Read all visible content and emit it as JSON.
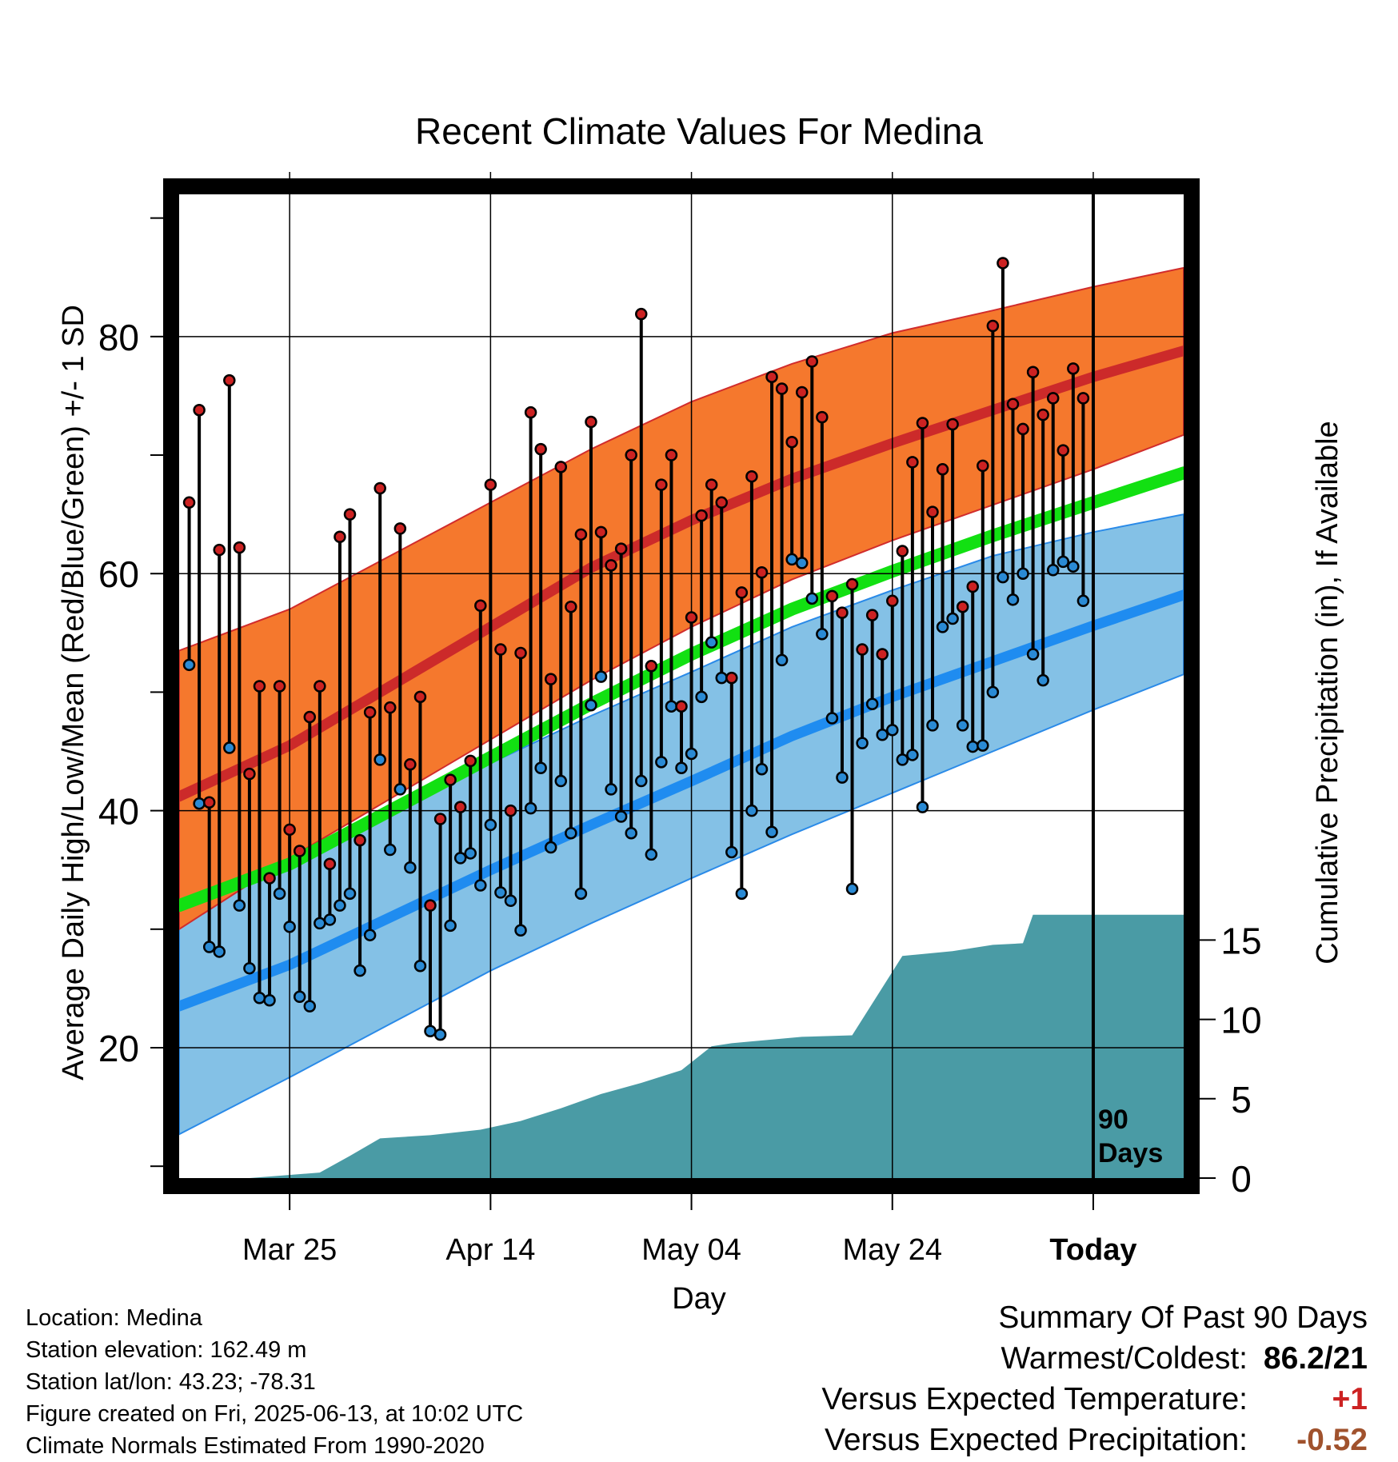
{
  "chart_data": {
    "type": "line",
    "title": "Recent Climate Values For Medina",
    "xlabel": "Day",
    "ylabel_left": "Average Daily High/Low/Mean (Red/Blue/Green) +/- 1 SD",
    "ylabel_right": "Cumulative Precipitation (in), If Available",
    "y_ticks": [
      20,
      40,
      60,
      80
    ],
    "y_range": [
      9,
      92
    ],
    "precip_ticks": [
      0,
      5,
      10,
      15
    ],
    "precip_range": [
      0,
      62
    ],
    "x_tick_labels": [
      {
        "day": 10,
        "label": "Mar 25"
      },
      {
        "day": 30,
        "label": "Apr 14"
      },
      {
        "day": 50,
        "label": "May 04"
      },
      {
        "day": 70,
        "label": "May 24"
      },
      {
        "day": 90,
        "label": "Today"
      }
    ],
    "x_range": [
      -1,
      99
    ],
    "today_day": 90,
    "today_label": "90 Days",
    "normals": {
      "days": [
        -1,
        10,
        20,
        30,
        40,
        50,
        60,
        70,
        80,
        90,
        99
      ],
      "high_mean": [
        41.2,
        45.5,
        50.5,
        55.5,
        60.5,
        64.5,
        68.0,
        71.0,
        73.8,
        76.6,
        78.8
      ],
      "high_upper": [
        53.5,
        57.0,
        61.5,
        66.0,
        70.5,
        74.5,
        77.7,
        80.3,
        82.2,
        84.2,
        85.8
      ],
      "high_lower": [
        30.0,
        36.0,
        41.0,
        46.0,
        51.0,
        55.5,
        59.5,
        62.8,
        65.8,
        68.8,
        71.7
      ],
      "mean": [
        32.0,
        35.5,
        40.0,
        44.5,
        49.0,
        53.2,
        57.0,
        60.2,
        63.2,
        66.0,
        68.5
      ],
      "low_mean": [
        23.5,
        27.0,
        31.0,
        35.0,
        38.8,
        42.5,
        46.3,
        49.6,
        52.6,
        55.6,
        58.2
      ],
      "low_upper": [
        34.0,
        36.0,
        40.0,
        44.0,
        48.0,
        51.7,
        55.5,
        58.6,
        61.5,
        63.5,
        65.0
      ],
      "low_lower": [
        12.7,
        17.5,
        22.0,
        26.5,
        30.5,
        34.3,
        38.0,
        41.5,
        45.0,
        48.5,
        51.5
      ]
    },
    "series": [
      {
        "name": "High",
        "color": "#cc2222",
        "values": [
          66.0,
          73.8,
          40.7,
          62.0,
          76.3,
          62.2,
          43.1,
          50.5,
          34.3,
          50.5,
          38.4,
          36.6,
          47.9,
          50.5,
          35.5,
          63.1,
          65.0,
          37.5,
          48.3,
          67.2,
          48.7,
          63.8,
          43.9,
          49.6,
          32.0,
          39.3,
          42.6,
          40.3,
          44.2,
          57.3,
          67.5,
          53.6,
          40.0,
          53.3,
          73.6,
          70.5,
          51.1,
          69.0,
          57.2,
          63.3,
          72.8,
          63.5,
          60.7,
          62.1,
          70.0,
          81.9,
          52.2,
          67.5,
          70.0,
          48.8,
          56.3,
          64.9,
          67.5,
          66.0,
          51.2,
          58.4,
          68.2,
          60.1,
          76.6,
          75.6,
          71.1,
          75.3,
          77.9,
          73.2,
          58.1,
          56.7,
          59.1,
          53.6,
          56.5,
          53.2,
          57.7,
          61.9,
          69.4,
          72.7,
          65.2,
          68.8,
          72.6,
          57.2,
          58.9,
          69.1,
          80.9,
          86.2,
          74.3,
          72.2,
          77.0,
          73.4,
          74.8,
          70.4,
          77.3,
          74.8
        ]
      },
      {
        "name": "Low",
        "color": "#2a8ad4",
        "values": [
          52.3,
          40.6,
          28.5,
          28.1,
          45.3,
          32.0,
          26.7,
          24.2,
          24.0,
          33.0,
          30.2,
          24.3,
          23.5,
          30.5,
          30.8,
          32.0,
          33.0,
          26.5,
          29.5,
          44.3,
          36.7,
          41.8,
          35.2,
          26.9,
          21.4,
          21.1,
          30.3,
          36.0,
          36.4,
          33.7,
          38.8,
          33.1,
          32.4,
          29.9,
          40.2,
          43.6,
          36.9,
          42.5,
          38.1,
          33.0,
          48.9,
          51.3,
          41.8,
          39.5,
          38.1,
          42.5,
          36.3,
          44.1,
          48.8,
          43.6,
          44.8,
          49.6,
          54.2,
          51.2,
          36.5,
          33.0,
          40.0,
          43.5,
          38.2,
          52.7,
          61.2,
          60.9,
          57.9,
          54.9,
          47.8,
          42.8,
          33.4,
          45.7,
          49.0,
          46.4,
          46.8,
          44.3,
          44.7,
          40.3,
          47.2,
          55.5,
          56.2,
          47.2,
          45.4,
          45.5,
          50.0,
          59.7,
          57.8,
          60.0,
          53.2,
          51.0,
          60.3,
          61.0,
          60.6,
          57.7
        ]
      }
    ],
    "precip": {
      "color": "#4a9ba5",
      "days": [
        -1,
        6,
        13,
        16,
        19,
        24,
        29,
        33,
        37,
        41,
        45,
        49,
        52,
        54,
        61,
        66,
        71,
        76,
        80,
        83,
        84,
        90,
        99
      ],
      "values": [
        0,
        0,
        0.35,
        1.4,
        2.5,
        2.7,
        3.05,
        3.6,
        4.4,
        5.3,
        6.0,
        6.8,
        8.3,
        8.5,
        8.9,
        9.0,
        14.0,
        14.3,
        14.7,
        14.8,
        16.6,
        16.6,
        16.6
      ]
    }
  },
  "info": {
    "location": "Location: Medina",
    "elevation": "Station elevation: 162.49 m",
    "latlon": "Station lat/lon: 43.23; -78.31",
    "created": "Figure created on Fri, 2025-06-13, at 10:02 UTC",
    "normals_source": "Climate Normals Estimated From 1990-2020"
  },
  "summary": {
    "heading": "Summary Of Past 90 Days",
    "warmest_label": "Warmest/Coldest:",
    "warmest_value": "86.2/21",
    "temp_label": "Versus Expected Temperature:",
    "temp_value": "+1",
    "temp_color": "#cc2222",
    "precip_label": "Versus Expected Precipitation:",
    "precip_value": "-0.52",
    "precip_color": "#a0522d"
  }
}
